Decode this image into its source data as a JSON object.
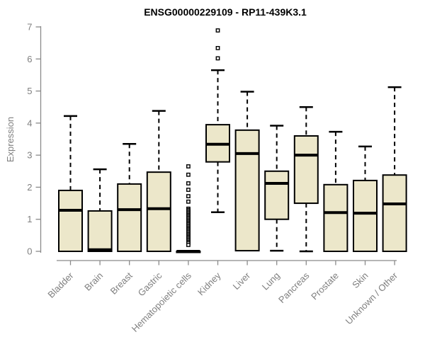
{
  "chart_data": {
    "type": "boxplot",
    "title": "ENSG00000229109 - RP11-439K3.1",
    "ylabel": "Expression",
    "xlabel": "",
    "ylim": [
      0,
      7
    ],
    "yticks": [
      0,
      1,
      2,
      3,
      4,
      5,
      6,
      7
    ],
    "grid": false,
    "legend": "none",
    "x_tick_rotation_deg": 45,
    "categories": [
      "Bladder",
      "Brain",
      "Breast",
      "Gastric",
      "Hematopoietic cells",
      "Kidney",
      "Liver",
      "Lung",
      "Pancreas",
      "Prostate",
      "Skin",
      "Unknown / Other"
    ],
    "boxes": [
      {
        "category": "Bladder",
        "whisker_low": 0,
        "q1": 0,
        "median": 1.28,
        "q3": 1.9,
        "whisker_high": 4.22,
        "outliers": []
      },
      {
        "category": "Brain",
        "whisker_low": 0,
        "q1": 0,
        "median": 0.05,
        "q3": 1.26,
        "whisker_high": 2.56,
        "outliers": []
      },
      {
        "category": "Breast",
        "whisker_low": 0,
        "q1": 0,
        "median": 1.3,
        "q3": 2.1,
        "whisker_high": 3.35,
        "outliers": []
      },
      {
        "category": "Gastric",
        "whisker_low": 0,
        "q1": 0,
        "median": 1.33,
        "q3": 2.47,
        "whisker_high": 4.38,
        "outliers": []
      },
      {
        "category": "Hematopoietic cells",
        "whisker_low": 0,
        "q1": 0,
        "median": 0,
        "q3": 0,
        "whisker_high": 0,
        "outliers": [
          2.65,
          2.39,
          2.12,
          1.92,
          1.72,
          1.55,
          1.33,
          1.29,
          1.25,
          1.21,
          1.17,
          1.13,
          1.09,
          1.05,
          1.01,
          0.97,
          0.93,
          0.89,
          0.85,
          0.81,
          0.77,
          0.73,
          0.69,
          0.65,
          0.61,
          0.57,
          0.53,
          0.49,
          0.45,
          0.41,
          0.37,
          0.33,
          0.29,
          0.25,
          0.2
        ]
      },
      {
        "category": "Kidney",
        "whisker_low": 1.22,
        "q1": 2.79,
        "median": 3.34,
        "q3": 3.95,
        "whisker_high": 5.65,
        "outliers": [
          6.89,
          6.34,
          6.02
        ]
      },
      {
        "category": "Liver",
        "whisker_low": 0.02,
        "q1": 0.02,
        "median": 3.05,
        "q3": 3.78,
        "whisker_high": 4.98,
        "outliers": []
      },
      {
        "category": "Lung",
        "whisker_low": 0.02,
        "q1": 1.0,
        "median": 2.12,
        "q3": 2.5,
        "whisker_high": 3.92,
        "outliers": []
      },
      {
        "category": "Pancreas",
        "whisker_low": 0,
        "q1": 1.5,
        "median": 3.0,
        "q3": 3.6,
        "whisker_high": 4.5,
        "outliers": []
      },
      {
        "category": "Prostate",
        "whisker_low": 0,
        "q1": 0,
        "median": 1.21,
        "q3": 2.08,
        "whisker_high": 3.73,
        "outliers": []
      },
      {
        "category": "Skin",
        "whisker_low": 0,
        "q1": 0,
        "median": 1.19,
        "q3": 2.21,
        "whisker_high": 3.27,
        "outliers": []
      },
      {
        "category": "Unknown / Other",
        "whisker_low": 0,
        "q1": 0,
        "median": 1.48,
        "q3": 2.38,
        "whisker_high": 5.12,
        "outliers": []
      }
    ]
  },
  "colors": {
    "background": "#FFFFFF",
    "box_fill": "#ECE7CA",
    "box_border": "#000000",
    "median_line": "#000000",
    "whisker": "#000000",
    "outlier_stroke": "#000000",
    "outlier_fill": "#FFFFFF",
    "axis_line": "#8A8A8A",
    "tick_label": "#7F7F7F",
    "title_color": "#000000"
  }
}
